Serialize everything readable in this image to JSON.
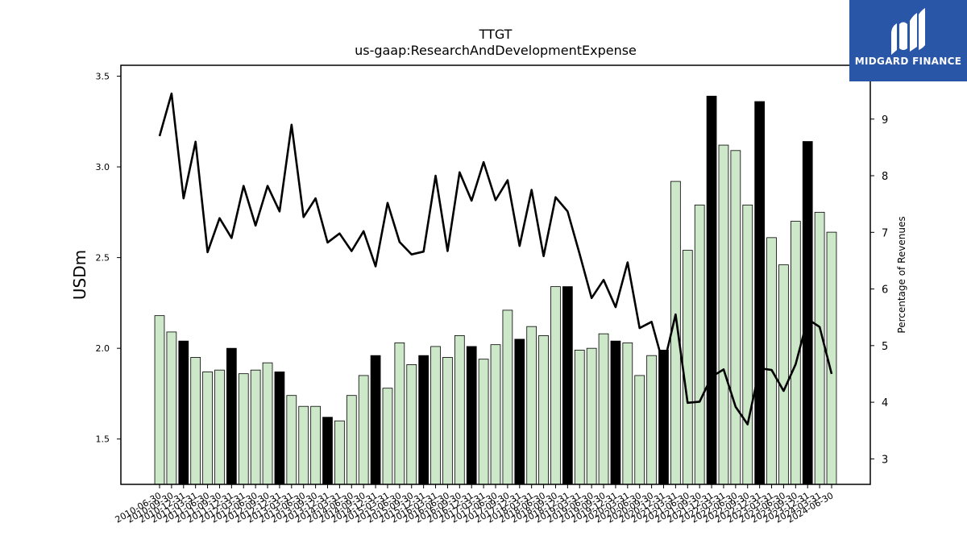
{
  "chart_data": {
    "type": "bar",
    "title": "TTGT",
    "subtitle": "us-gaap:ResearchAndDevelopmentExpense",
    "ylabel": "USDm",
    "y2label": "Percentage of Revenues",
    "ylim": [
      1.25,
      3.56
    ],
    "y2lim": [
      2.55,
      9.95
    ],
    "yticks": [
      "1.5",
      "2.0",
      "2.5",
      "3.0",
      "3.5"
    ],
    "y2ticks": [
      "3",
      "4",
      "5",
      "6",
      "7",
      "8",
      "9"
    ],
    "categories": [
      "2010-06-30",
      "2010-09-30",
      "2010-12-31",
      "2011-03-31",
      "2011-06-30",
      "2011-09-30",
      "2011-12-31",
      "2012-03-31",
      "2012-06-30",
      "2012-09-30",
      "2012-12-31",
      "2013-03-31",
      "2013-06-30",
      "2013-09-30",
      "2013-12-31",
      "2014-03-31",
      "2014-06-30",
      "2014-09-30",
      "2014-12-31",
      "2015-03-31",
      "2015-06-30",
      "2015-09-30",
      "2015-12-31",
      "2016-03-31",
      "2016-06-30",
      "2016-09-30",
      "2016-12-31",
      "2017-03-31",
      "2017-06-30",
      "2017-09-30",
      "2017-12-31",
      "2018-03-31",
      "2018-06-30",
      "2018-09-30",
      "2018-12-31",
      "2019-03-31",
      "2019-06-30",
      "2019-09-30",
      "2019-12-31",
      "2020-03-31",
      "2020-06-30",
      "2020-09-30",
      "2020-12-31",
      "2021-03-31",
      "2021-06-30",
      "2021-09-30",
      "2021-12-31",
      "2022-03-31",
      "2022-06-30",
      "2022-09-30",
      "2022-12-31",
      "2023-03-31",
      "2023-06-30",
      "2023-09-30",
      "2023-12-31",
      "2024-03-31",
      "2024-06-30"
    ],
    "series": [
      {
        "kind": "bar",
        "values": [
          2.18,
          2.09,
          2.04,
          1.95,
          1.87,
          1.88,
          2.0,
          1.86,
          1.88,
          1.92,
          1.87,
          1.74,
          1.68,
          1.68,
          1.62,
          1.6,
          1.74,
          1.85,
          1.96,
          1.78,
          2.03,
          1.91,
          1.96,
          2.01,
          1.95,
          2.07,
          2.01,
          1.94,
          2.02,
          2.21,
          2.05,
          2.12,
          2.07,
          2.34,
          2.34,
          1.99,
          2.0,
          2.08,
          2.04,
          2.03,
          1.85,
          1.96,
          1.99,
          2.92,
          2.54,
          2.79,
          3.39,
          3.12,
          3.09,
          2.79,
          3.36,
          2.61,
          2.46,
          2.7,
          3.14,
          2.75,
          2.64
        ],
        "highlight": [
          false,
          false,
          true,
          false,
          false,
          false,
          true,
          false,
          false,
          false,
          true,
          false,
          false,
          false,
          true,
          false,
          false,
          false,
          true,
          false,
          false,
          false,
          true,
          false,
          false,
          false,
          true,
          false,
          false,
          false,
          true,
          false,
          false,
          false,
          true,
          false,
          false,
          false,
          true,
          false,
          false,
          false,
          true,
          false,
          false,
          false,
          true,
          false,
          false,
          false,
          true,
          false,
          false,
          false,
          true,
          false,
          false
        ],
        "color": "#cce8c8",
        "highlight_color": "#000000"
      },
      {
        "kind": "line",
        "axis": "right",
        "values": [
          8.7,
          9.45,
          7.6,
          8.6,
          6.65,
          7.25,
          6.9,
          7.82,
          7.12,
          7.82,
          7.37,
          8.9,
          7.27,
          7.6,
          6.82,
          6.98,
          6.67,
          7.02,
          6.4,
          7.52,
          6.83,
          6.61,
          6.66,
          8.0,
          6.67,
          8.06,
          7.56,
          8.24,
          7.57,
          7.92,
          6.76,
          7.75,
          6.58,
          7.62,
          7.37,
          6.62,
          5.84,
          6.16,
          5.68,
          6.47,
          5.31,
          5.42,
          4.65,
          5.55,
          3.99,
          4.01,
          4.45,
          4.58,
          3.92,
          3.61,
          4.6,
          4.57,
          4.2,
          4.67,
          5.47,
          5.33,
          4.5
        ],
        "color": "#000000"
      }
    ]
  },
  "watermark": {
    "brand": "MIDGARD FINANCE",
    "bg_color": "#2a56a8"
  }
}
